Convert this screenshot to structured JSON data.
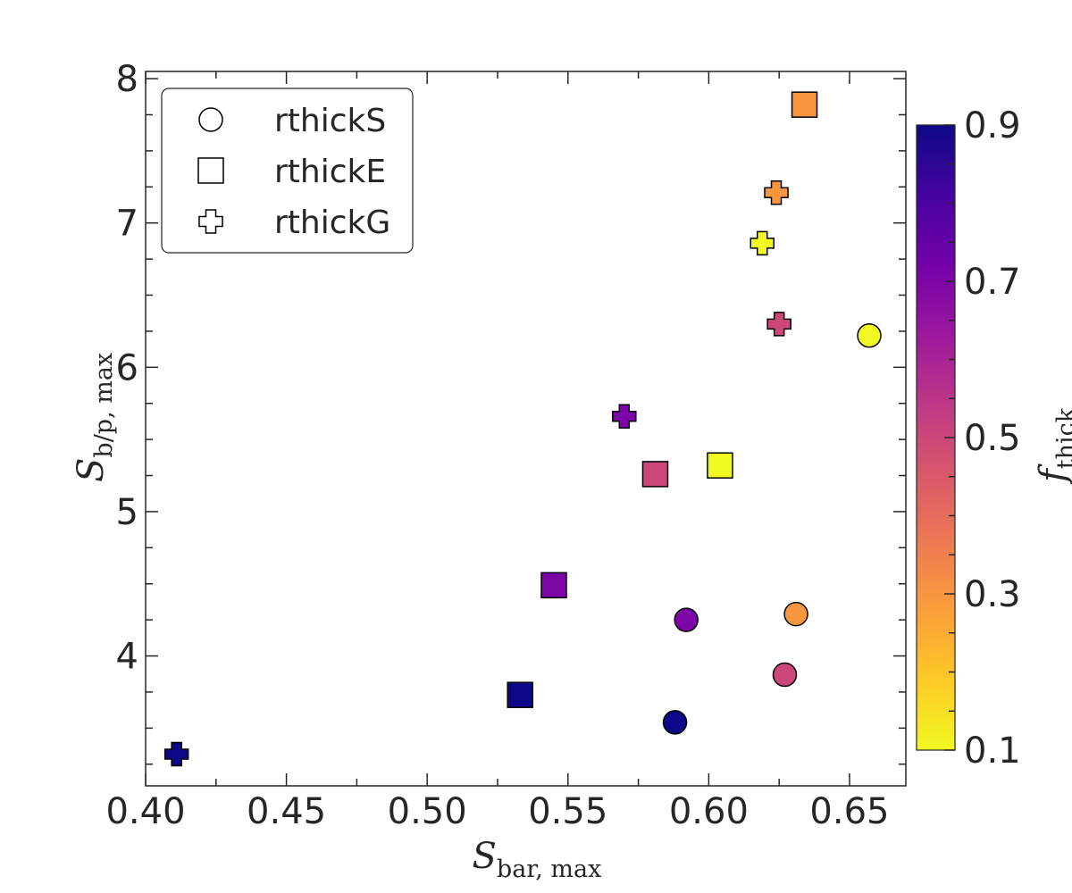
{
  "chart_data": {
    "type": "scatter",
    "title": "",
    "xlabel": {
      "main": "S",
      "sub": "bar, max"
    },
    "ylabel": {
      "main": "S",
      "sub": "b/p, max"
    },
    "xlim": [
      0.4,
      0.67
    ],
    "ylim": [
      3.1,
      8.05
    ],
    "xticks": [
      0.4,
      0.45,
      0.5,
      0.55,
      0.6,
      0.65
    ],
    "xtick_labels": [
      "0.40",
      "0.45",
      "0.50",
      "0.55",
      "0.60",
      "0.65"
    ],
    "yticks": [
      4,
      5,
      6,
      7,
      8
    ],
    "ytick_labels": [
      "4",
      "5",
      "6",
      "7",
      "8"
    ],
    "legend": {
      "position": "top-left",
      "entries": [
        {
          "label": "rthickS",
          "marker": "circle"
        },
        {
          "label": "rthickE",
          "marker": "square"
        },
        {
          "label": "rthickG",
          "marker": "plus"
        }
      ]
    },
    "colorbar": {
      "label": {
        "main": "f",
        "sub": "thick"
      },
      "range": [
        0.1,
        0.9
      ],
      "ticks": [
        0.1,
        0.3,
        0.5,
        0.7,
        0.9
      ],
      "tick_labels": [
        "0.1",
        "0.3",
        "0.5",
        "0.7",
        "0.9"
      ],
      "colormap": "plasma",
      "reversed": true
    },
    "series": [
      {
        "name": "rthickS",
        "marker": "circle",
        "points": [
          {
            "x": 0.657,
            "y": 6.22,
            "f_thick": 0.1
          },
          {
            "x": 0.631,
            "y": 4.29,
            "f_thick": 0.3
          },
          {
            "x": 0.627,
            "y": 3.87,
            "f_thick": 0.5
          },
          {
            "x": 0.592,
            "y": 4.25,
            "f_thick": 0.7
          },
          {
            "x": 0.588,
            "y": 3.54,
            "f_thick": 0.9
          }
        ]
      },
      {
        "name": "rthickE",
        "marker": "square",
        "points": [
          {
            "x": 0.604,
            "y": 5.32,
            "f_thick": 0.1
          },
          {
            "x": 0.634,
            "y": 7.82,
            "f_thick": 0.3
          },
          {
            "x": 0.581,
            "y": 5.26,
            "f_thick": 0.5
          },
          {
            "x": 0.545,
            "y": 4.49,
            "f_thick": 0.7
          },
          {
            "x": 0.533,
            "y": 3.73,
            "f_thick": 0.9
          }
        ]
      },
      {
        "name": "rthickG",
        "marker": "plus",
        "points": [
          {
            "x": 0.619,
            "y": 6.86,
            "f_thick": 0.1
          },
          {
            "x": 0.624,
            "y": 7.21,
            "f_thick": 0.3
          },
          {
            "x": 0.625,
            "y": 6.3,
            "f_thick": 0.5
          },
          {
            "x": 0.57,
            "y": 5.66,
            "f_thick": 0.7
          },
          {
            "x": 0.411,
            "y": 3.32,
            "f_thick": 0.9
          }
        ]
      }
    ]
  },
  "colors": {
    "axis": "#262626",
    "marker_edge": "#000000",
    "plasma_stops": [
      "#f0f921",
      "#fdca26",
      "#fb9f3a",
      "#ed7953",
      "#d8576b",
      "#bd3786",
      "#9c179e",
      "#7201a8",
      "#46039f",
      "#0d0887"
    ]
  }
}
